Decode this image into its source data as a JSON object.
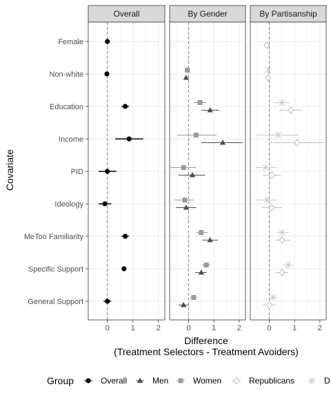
{
  "chart_data": {
    "type": "scatter",
    "subtype": "dot-and-whisker, faceted",
    "facets": [
      "Overall",
      "By Gender",
      "By Partisanship"
    ],
    "covariates": [
      "Female",
      "Non-white",
      "Education",
      "Income",
      "PID",
      "Ideology",
      "MeToo Familiarity",
      "Specific Support",
      "General Support"
    ],
    "ylabel": "Covariate",
    "xlabel_line1": "Difference",
    "xlabel_line2": "(Treatment Selectors - Treatment Avoiders)",
    "xlim": [
      -0.75,
      2.25
    ],
    "xticks": [
      0,
      1,
      2
    ],
    "xtick_labels": [
      "0",
      "1",
      "2"
    ],
    "reference_line_x": 0,
    "grid": true,
    "legend": {
      "position": "bottom",
      "title": "Group",
      "entries": [
        {
          "label": "Overall",
          "symbol": "circle"
        },
        {
          "label": "Men",
          "symbol": "triangle"
        },
        {
          "label": "Women",
          "symbol": "square"
        },
        {
          "label": "Republicans",
          "symbol": "diamond"
        },
        {
          "label": "D",
          "symbol": "star"
        }
      ]
    },
    "colors": {
      "Overall": "#000000",
      "Men": "#4d4d4d",
      "Women": "#9a9a9a",
      "Republicans": "#bdbdbd",
      "Democrats": "#c8c8c8",
      "strip_fill": "#d9d9d9",
      "grid": "#ebebeb",
      "panel_border": "#333333",
      "reference_line": "#7f7f7f"
    },
    "series": [
      {
        "facet": "Overall",
        "group": "Overall",
        "marker": "circle",
        "offset": 0,
        "points": [
          {
            "covariate": "Female",
            "estimate": 0.0,
            "low": -0.03,
            "high": 0.03
          },
          {
            "covariate": "Non-white",
            "estimate": -0.02,
            "low": -0.06,
            "high": 0.02
          },
          {
            "covariate": "Education",
            "estimate": 0.7,
            "low": 0.55,
            "high": 0.85
          },
          {
            "covariate": "Income",
            "estimate": 0.85,
            "low": 0.3,
            "high": 1.4
          },
          {
            "covariate": "PID",
            "estimate": 0.0,
            "low": -0.35,
            "high": 0.35
          },
          {
            "covariate": "Ideology",
            "estimate": -0.1,
            "low": -0.35,
            "high": 0.15
          },
          {
            "covariate": "MeToo Familiarity",
            "estimate": 0.7,
            "low": 0.55,
            "high": 0.85
          },
          {
            "covariate": "Specific Support",
            "estimate": 0.65,
            "low": 0.55,
            "high": 0.75
          },
          {
            "covariate": "General Support",
            "estimate": 0.0,
            "low": -0.15,
            "high": 0.15
          }
        ]
      },
      {
        "facet": "By Gender",
        "group": "Women",
        "marker": "square",
        "offset": -1,
        "points": [
          {
            "covariate": "Non-white",
            "estimate": -0.05,
            "low": -0.09,
            "high": -0.01
          },
          {
            "covariate": "Education",
            "estimate": 0.45,
            "low": 0.2,
            "high": 0.7
          },
          {
            "covariate": "Income",
            "estimate": 0.3,
            "low": -0.45,
            "high": 1.1
          },
          {
            "covariate": "PID",
            "estimate": -0.2,
            "low": -0.75,
            "high": 0.3
          },
          {
            "covariate": "Ideology",
            "estimate": -0.15,
            "low": -0.55,
            "high": 0.2
          },
          {
            "covariate": "MeToo Familiarity",
            "estimate": 0.5,
            "low": 0.3,
            "high": 0.75
          },
          {
            "covariate": "Specific Support",
            "estimate": 0.7,
            "low": 0.55,
            "high": 0.85
          },
          {
            "covariate": "General Support",
            "estimate": 0.2,
            "low": 0.05,
            "high": 0.35
          }
        ]
      },
      {
        "facet": "By Gender",
        "group": "Men",
        "marker": "triangle",
        "offset": 1,
        "points": [
          {
            "covariate": "Non-white",
            "estimate": -0.1,
            "low": -0.14,
            "high": -0.06
          },
          {
            "covariate": "Education",
            "estimate": 0.85,
            "low": 0.5,
            "high": 1.2
          },
          {
            "covariate": "Income",
            "estimate": 1.35,
            "low": 0.5,
            "high": 2.15
          },
          {
            "covariate": "PID",
            "estimate": 0.15,
            "low": -0.4,
            "high": 0.65
          },
          {
            "covariate": "Ideology",
            "estimate": -0.1,
            "low": -0.5,
            "high": 0.3
          },
          {
            "covariate": "MeToo Familiarity",
            "estimate": 0.85,
            "low": 0.55,
            "high": 1.15
          },
          {
            "covariate": "Specific Support",
            "estimate": 0.5,
            "low": 0.25,
            "high": 0.7
          },
          {
            "covariate": "General Support",
            "estimate": -0.2,
            "low": -0.4,
            "high": 0.0
          }
        ]
      },
      {
        "facet": "By Partisanship",
        "group": "Democrats",
        "marker": "star",
        "offset": -1,
        "points": [
          {
            "covariate": "Non-white",
            "estimate": -0.05,
            "low": -0.09,
            "high": -0.01
          },
          {
            "covariate": "Education",
            "estimate": 0.5,
            "low": 0.2,
            "high": 0.8
          },
          {
            "covariate": "Income",
            "estimate": 0.35,
            "low": -0.5,
            "high": 1.15
          },
          {
            "covariate": "PID",
            "estimate": -0.15,
            "low": -0.55,
            "high": 0.3
          },
          {
            "covariate": "Ideology",
            "estimate": -0.1,
            "low": -0.55,
            "high": 0.3
          },
          {
            "covariate": "MeToo Familiarity",
            "estimate": 0.5,
            "low": 0.3,
            "high": 0.75
          },
          {
            "covariate": "Specific Support",
            "estimate": 0.75,
            "low": 0.55,
            "high": 0.95
          },
          {
            "covariate": "General Support",
            "estimate": 0.15,
            "low": 0.0,
            "high": 0.35
          }
        ]
      },
      {
        "facet": "By Partisanship",
        "group": "Republicans",
        "marker": "diamond",
        "offset": 1,
        "points": [
          {
            "covariate": "Female",
            "estimate": -0.1,
            "low": -0.18,
            "high": -0.02
          },
          {
            "covariate": "Non-white",
            "estimate": -0.05,
            "low": -0.09,
            "high": -0.01
          },
          {
            "covariate": "Education",
            "estimate": 0.85,
            "low": 0.4,
            "high": 1.3
          },
          {
            "covariate": "Income",
            "estimate": 1.1,
            "low": 0.0,
            "high": 2.2
          },
          {
            "covariate": "PID",
            "estimate": 0.1,
            "low": -0.25,
            "high": 0.45
          },
          {
            "covariate": "Ideology",
            "estimate": 0.1,
            "low": -0.3,
            "high": 0.5
          },
          {
            "covariate": "MeToo Familiarity",
            "estimate": 0.5,
            "low": 0.25,
            "high": 0.85
          },
          {
            "covariate": "Specific Support",
            "estimate": 0.5,
            "low": 0.25,
            "high": 0.75
          },
          {
            "covariate": "General Support",
            "estimate": 0.0,
            "low": -0.25,
            "high": 0.25
          }
        ]
      }
    ]
  }
}
